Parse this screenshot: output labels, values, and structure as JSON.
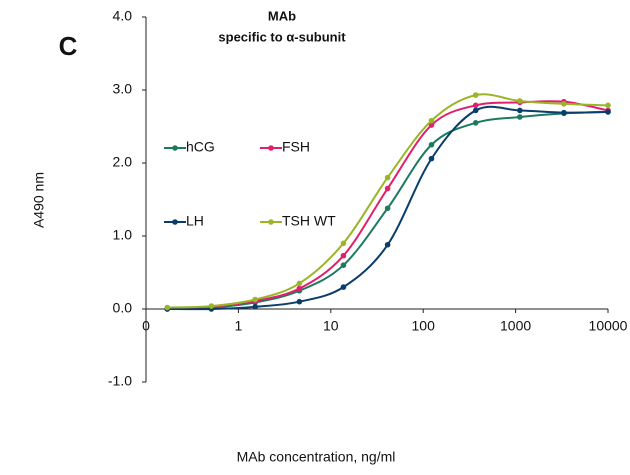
{
  "chart_data": {
    "type": "line",
    "panel_label": "C",
    "title": "MAb",
    "subtitle": "specific to α-subunit",
    "x_label": "MAb concentration, ng/ml",
    "y_label": "A490 nm",
    "x": [
      0.17,
      0.51,
      1.52,
      4.57,
      13.7,
      41.2,
      123,
      370,
      1111,
      3333,
      10000
    ],
    "series": [
      {
        "name": "hCG",
        "color": "#1e7a5f",
        "values": [
          0.0,
          0.02,
          0.09,
          0.25,
          0.6,
          1.38,
          2.25,
          2.55,
          2.63,
          2.68,
          2.7
        ]
      },
      {
        "name": "FSH",
        "color": "#e0206c",
        "values": [
          0.01,
          0.03,
          0.11,
          0.28,
          0.73,
          1.65,
          2.52,
          2.79,
          2.83,
          2.84,
          2.72
        ]
      },
      {
        "name": "LH",
        "color": "#0b3d6b",
        "values": [
          0.0,
          0.0,
          0.03,
          0.1,
          0.3,
          0.88,
          2.06,
          2.72,
          2.72,
          2.69,
          2.7
        ]
      },
      {
        "name": "TSH WT",
        "color": "#9ab527",
        "values": [
          0.02,
          0.04,
          0.13,
          0.35,
          0.9,
          1.8,
          2.58,
          2.93,
          2.85,
          2.81,
          2.79
        ]
      }
    ],
    "x_log": true,
    "smooth": true,
    "xlim": [
      0.1,
      10000
    ],
    "xticks": [
      {
        "value": 0.1,
        "label": "0"
      },
      1,
      10,
      100,
      1000,
      10000
    ],
    "ylim": [
      -1,
      4
    ],
    "yticks": [
      {
        "value": 4,
        "label": "4.0"
      },
      {
        "value": 3,
        "label": "3.0"
      },
      {
        "value": 2,
        "label": "2.0"
      },
      {
        "value": 1,
        "label": "1.0"
      },
      {
        "value": 0,
        "label": "0.0"
      },
      {
        "value": -1,
        "label": "-1.0"
      }
    ],
    "grid": false
  }
}
